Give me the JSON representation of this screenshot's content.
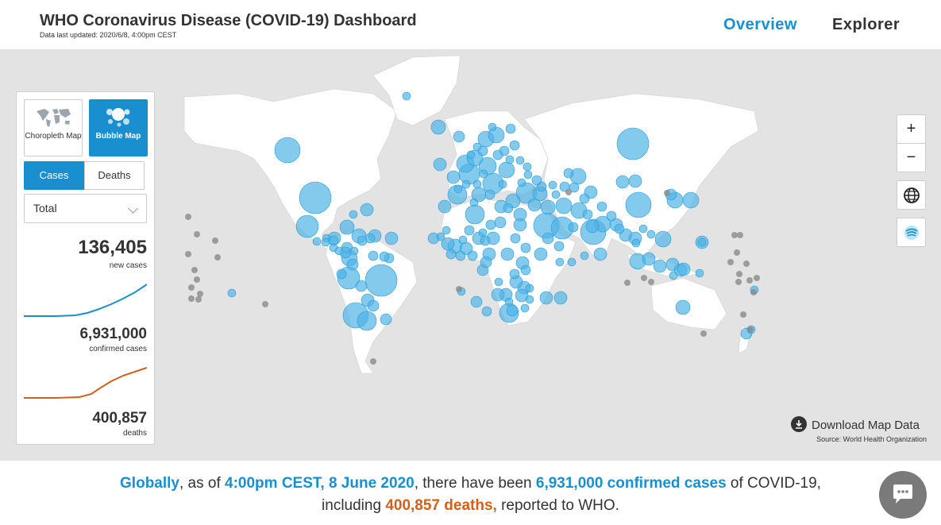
{
  "header": {
    "title": "WHO Coronavirus Disease (COVID-19) Dashboard",
    "updated": "Data last updated: 2020/6/8, 4:00pm CEST",
    "nav": [
      "Overview",
      "Explorer"
    ]
  },
  "panel": {
    "map_types": [
      {
        "label": "Choropleth Map",
        "icon": "world-map-icon",
        "selected": false
      },
      {
        "label": "Bubble Map",
        "icon": "bubble-icon",
        "selected": true
      }
    ],
    "tabs": [
      {
        "label": "Cases",
        "selected": true
      },
      {
        "label": "Deaths",
        "selected": false
      }
    ],
    "select_value": "Total",
    "stats": [
      {
        "value": "136,405",
        "label": "new cases"
      },
      {
        "value": "6,931,000",
        "label": "confirmed cases",
        "color": "#1a8fcf"
      },
      {
        "value": "400,857",
        "label": "deaths",
        "color": "#d2601a"
      }
    ]
  },
  "map_controls": {
    "zoom_in": "+",
    "zoom_out": "−",
    "icons": [
      "globe-icon",
      "wave-icon"
    ]
  },
  "download": {
    "label": "Download Map Data",
    "source": "Source: World Health Organization"
  },
  "summary": {
    "globally": "Globally",
    "as_of": ", as of ",
    "datetime": "4:00pm CEST, 8 June 2020",
    "have_been": ", there have been ",
    "confirmed": "6,931,000 confirmed cases",
    "of_covid": " of COVID-19,",
    "including": "including ",
    "deaths": "400,857 deaths,",
    "reported": " reported to WHO."
  },
  "colors": {
    "accent": "#1a8fcf",
    "deaths": "#d2601a",
    "bubble": "#4fb3e6",
    "land": "#ffffff",
    "ocean": "#e3e3e3"
  }
}
